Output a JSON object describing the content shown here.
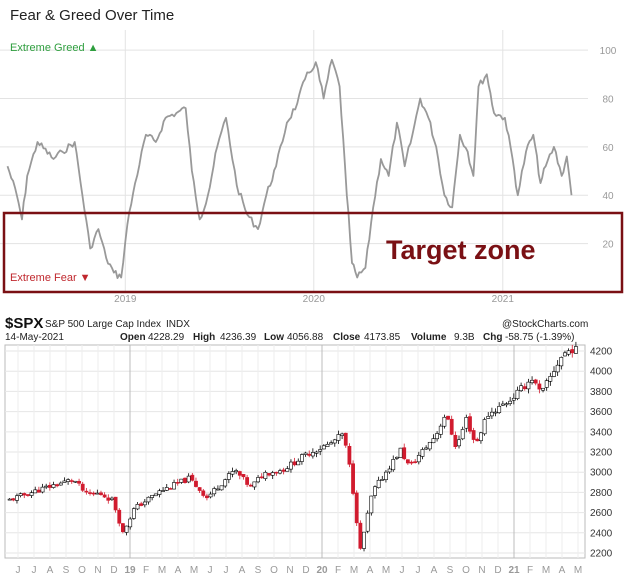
{
  "fear_greed": {
    "title": "Fear & Greed Over Time",
    "greed_label": "Extreme Greed ▲",
    "fear_label": "Extreme Fear ▼",
    "annotation": "Target zone",
    "colors": {
      "line": "#999999",
      "greed": "#2e9e3e",
      "fear": "#c0282e",
      "box": "#7a1014"
    }
  },
  "spx_header": {
    "symbol": "$SPX",
    "name": "S&P 500 Large Cap Index",
    "exchange": "INDX",
    "credit": "@StockCharts.com",
    "date": "14-May-2021",
    "open_label": "Open",
    "open": "4228.29",
    "high_label": "High",
    "high": "4236.39",
    "low_label": "Low",
    "low": "4056.88",
    "close_label": "Close",
    "close": "4173.85",
    "volume_label": "Volume",
    "volume": "9.3B",
    "chg_label": "Chg",
    "chg": "-58.75 (-1.39%)"
  },
  "chart_data": [
    {
      "type": "line",
      "title": "Fear & Greed Over Time",
      "y_ticks": [
        100,
        80,
        60,
        40,
        20
      ],
      "x_ticks": [
        {
          "label": "2019",
          "x": "2019-01-01"
        },
        {
          "label": "2020",
          "x": "2020-01-01"
        },
        {
          "label": "2021",
          "x": "2021-01-01"
        }
      ],
      "ylim": [
        0,
        105
      ],
      "xlim": [
        "2018-05-15",
        "2021-06-15"
      ],
      "grid": true,
      "series": [
        {
          "x": [
            "2018-05-18",
            "2018-06-05",
            "2018-06-15",
            "2018-06-25",
            "2018-07-15",
            "2018-08-15",
            "2018-09-01",
            "2018-09-25",
            "2018-10-10",
            "2018-10-25",
            "2018-11-10",
            "2018-11-25",
            "2018-12-10",
            "2018-12-24",
            "2019-01-05",
            "2019-01-20",
            "2019-02-10",
            "2019-03-01",
            "2019-03-20",
            "2019-04-10",
            "2019-04-28",
            "2019-05-10",
            "2019-05-25",
            "2019-06-10",
            "2019-06-28",
            "2019-07-15",
            "2019-08-05",
            "2019-08-25",
            "2019-09-15",
            "2019-10-01",
            "2019-10-20",
            "2019-11-10",
            "2019-11-30",
            "2019-12-15",
            "2020-01-05",
            "2020-01-20",
            "2020-02-05",
            "2020-02-20",
            "2020-03-05",
            "2020-03-15",
            "2020-03-25",
            "2020-04-10",
            "2020-04-25",
            "2020-05-10",
            "2020-05-25",
            "2020-06-10",
            "2020-06-25",
            "2020-07-10",
            "2020-07-25",
            "2020-08-10",
            "2020-08-25",
            "2020-09-10",
            "2020-09-25",
            "2020-10-10",
            "2020-10-25",
            "2020-11-05",
            "2020-11-15",
            "2020-12-01",
            "2020-12-15",
            "2021-01-05",
            "2021-01-20",
            "2021-01-30",
            "2021-02-15",
            "2021-03-01",
            "2021-03-15",
            "2021-03-25",
            "2021-04-10",
            "2021-04-25",
            "2021-05-05",
            "2021-05-14"
          ],
          "y": [
            52,
            40,
            30,
            48,
            62,
            55,
            58,
            62,
            40,
            18,
            26,
            14,
            8,
            6,
            28,
            45,
            65,
            62,
            72,
            74,
            76,
            50,
            30,
            40,
            60,
            72,
            44,
            32,
            26,
            40,
            52,
            70,
            78,
            88,
            95,
            80,
            96,
            85,
            40,
            12,
            6,
            10,
            35,
            55,
            48,
            70,
            52,
            65,
            80,
            72,
            60,
            40,
            35,
            65,
            58,
            48,
            85,
            90,
            74,
            72,
            55,
            40,
            58,
            65,
            45,
            52,
            60,
            48,
            56,
            40
          ]
        }
      ]
    },
    {
      "type": "candlestick",
      "title": "$SPX S&P 500 Large Cap Index INDX",
      "y_ticks": [
        4200,
        4000,
        3800,
        3600,
        3400,
        3200,
        3000,
        2800,
        2600,
        2400,
        2200
      ],
      "ylim": [
        2150,
        4260
      ],
      "x_ticks": [
        "J",
        "J",
        "A",
        "S",
        "O",
        "N",
        "D",
        "19",
        "F",
        "M",
        "A",
        "M",
        "J",
        "J",
        "A",
        "S",
        "O",
        "N",
        "D",
        "20",
        "F",
        "M",
        "A",
        "M",
        "J",
        "J",
        "A",
        "S",
        "O",
        "N",
        "D",
        "21",
        "F",
        "M",
        "A",
        "M"
      ],
      "grid": true,
      "colors": {
        "up": "#000000",
        "down": "#d11b2e"
      },
      "series": [
        {
          "name": "close",
          "x": [
            "2018-05-18",
            "2018-06-20",
            "2018-07-25",
            "2018-09-20",
            "2018-10-15",
            "2018-11-10",
            "2018-12-05",
            "2018-12-24",
            "2019-01-15",
            "2019-03-01",
            "2019-04-30",
            "2019-06-03",
            "2019-07-26",
            "2019-08-26",
            "2019-09-20",
            "2019-10-25",
            "2019-12-15",
            "2020-01-25",
            "2020-02-19",
            "2020-03-05",
            "2020-03-23",
            "2020-04-15",
            "2020-06-08",
            "2020-06-25",
            "2020-08-15",
            "2020-09-02",
            "2020-09-23",
            "2020-10-12",
            "2020-10-30",
            "2020-11-20",
            "2021-01-05",
            "2021-02-15",
            "2021-03-04",
            "2021-04-15",
            "2021-05-07",
            "2021-05-14"
          ],
          "y": [
            2720,
            2780,
            2840,
            2930,
            2780,
            2790,
            2720,
            2400,
            2640,
            2800,
            2940,
            2750,
            3020,
            2850,
            2990,
            3020,
            3190,
            3280,
            3380,
            2980,
            2230,
            2800,
            3220,
            3050,
            3370,
            3580,
            3240,
            3530,
            3270,
            3560,
            3720,
            3930,
            3770,
            4170,
            4230,
            4174
          ]
        }
      ]
    }
  ]
}
